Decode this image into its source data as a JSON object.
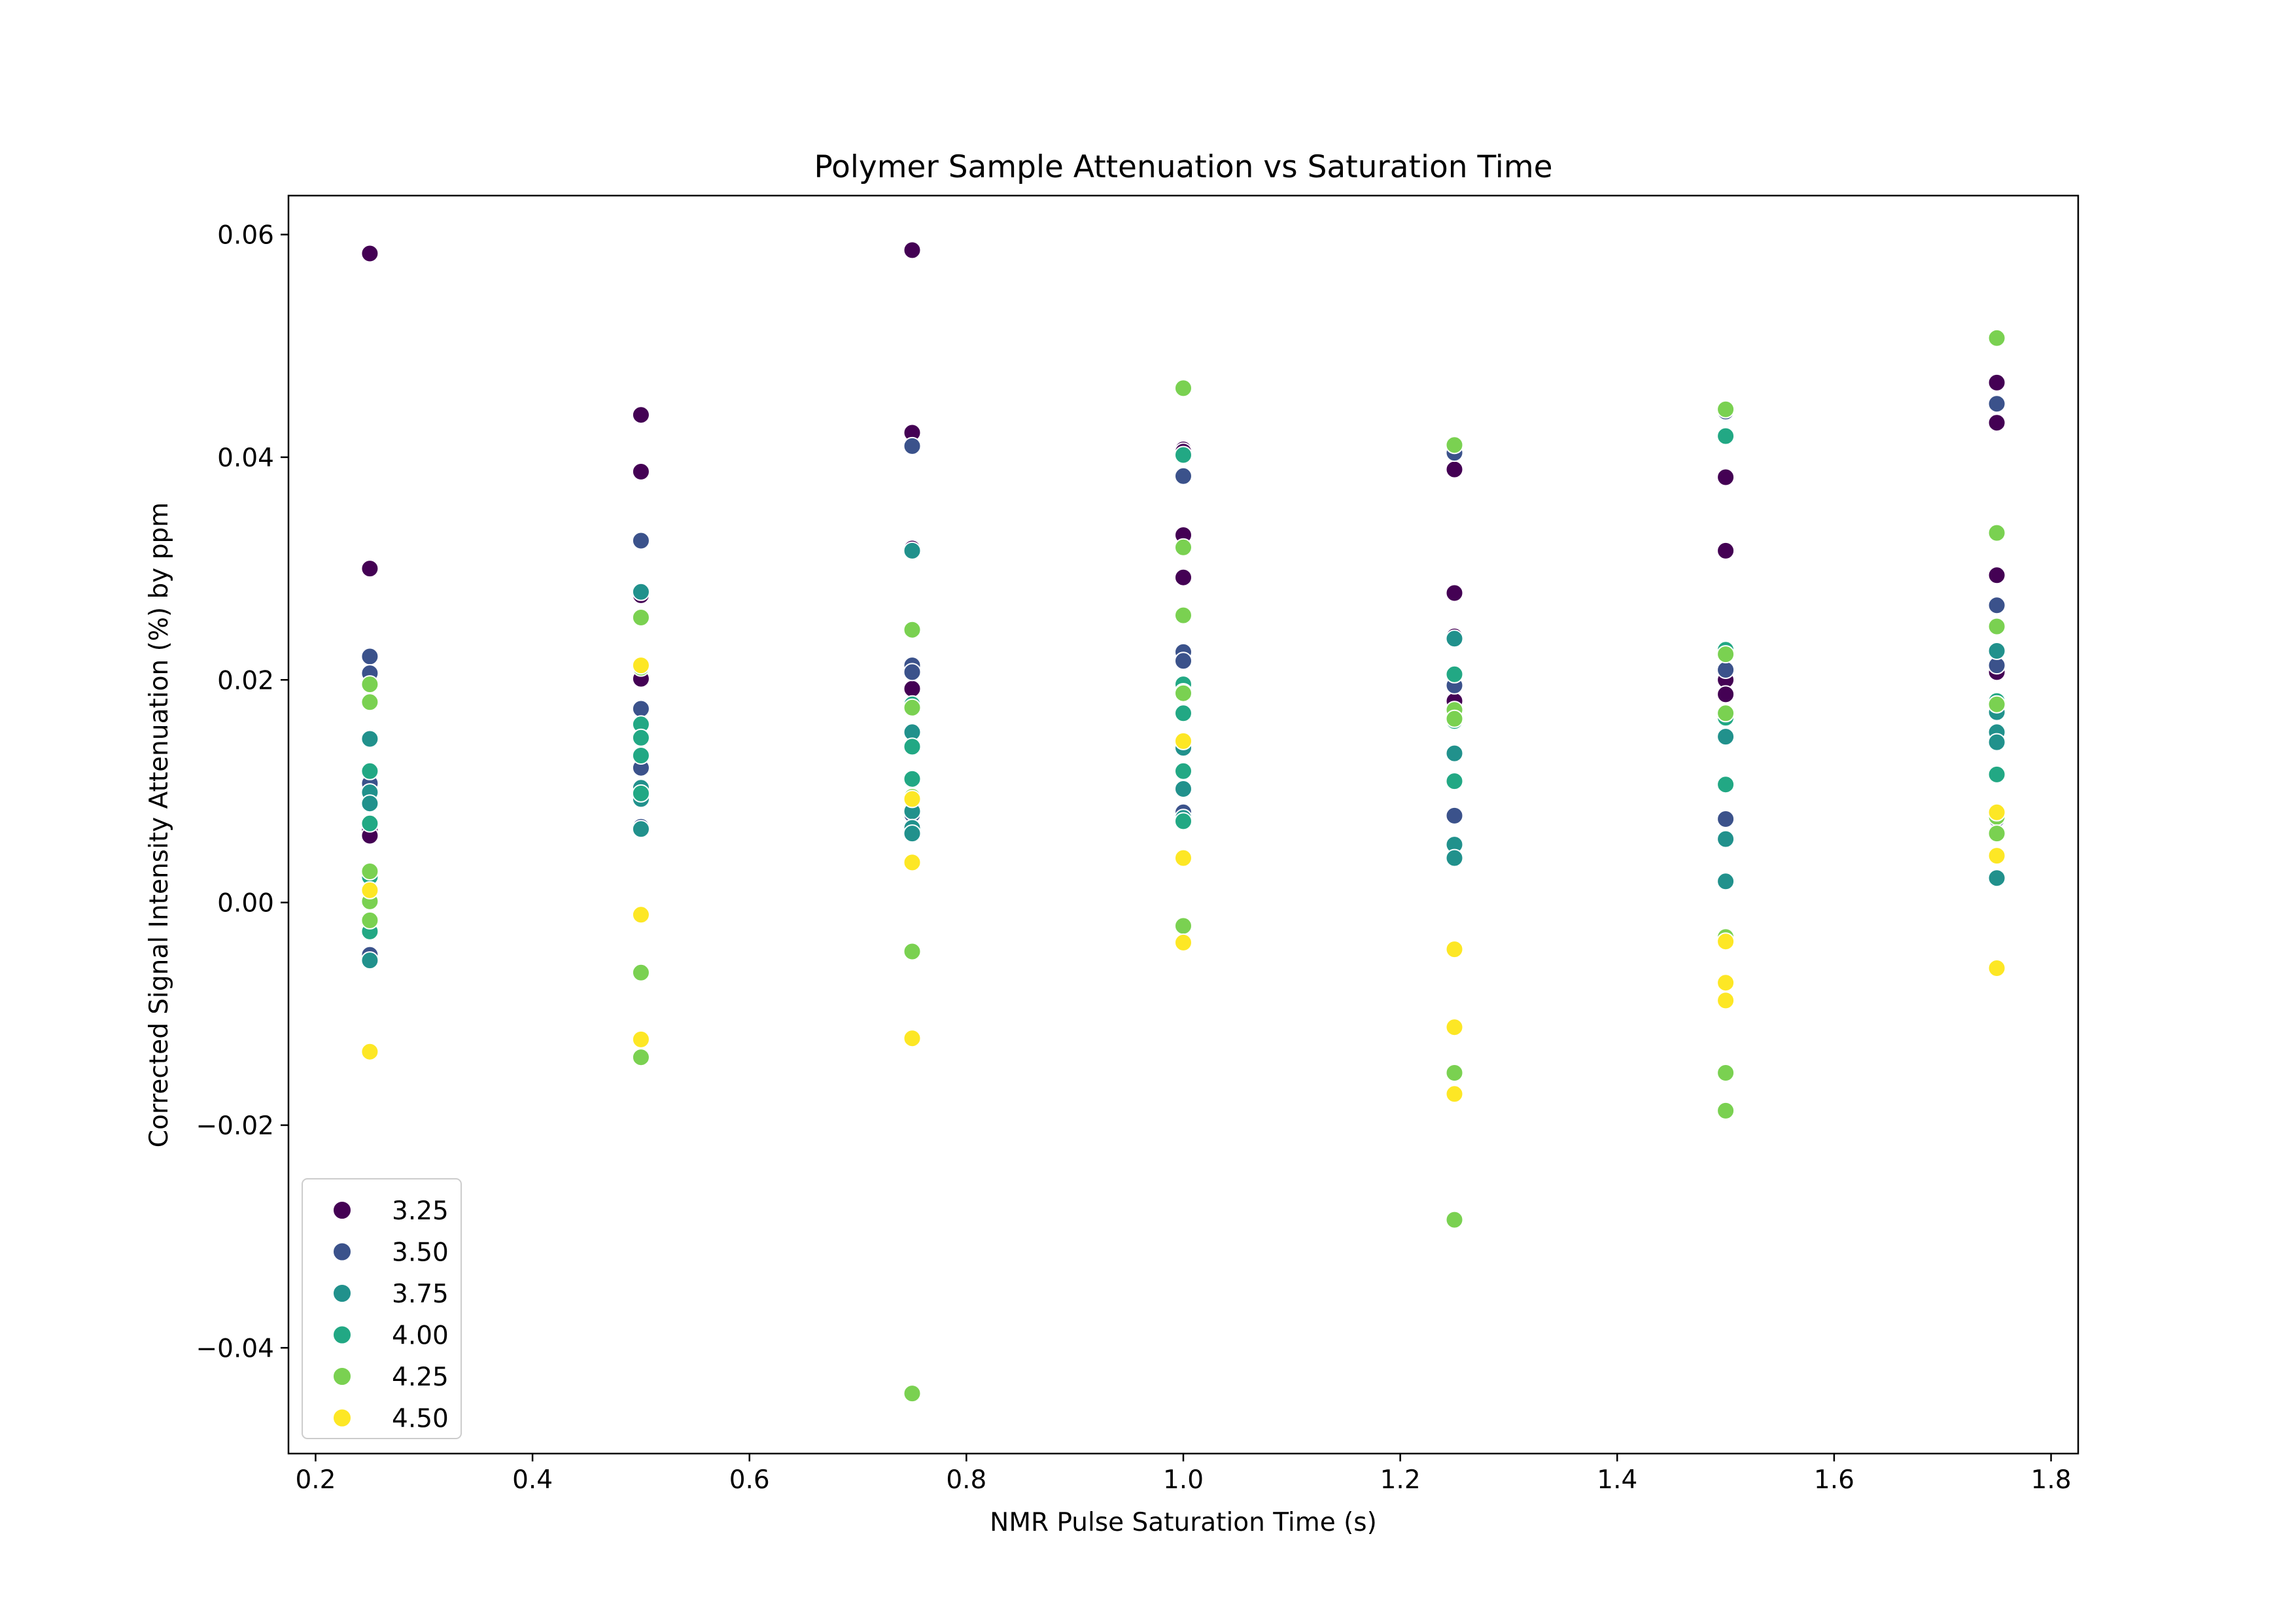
{
  "chart_data": {
    "type": "scatter",
    "title": "Polymer Sample Attenuation vs Saturation Time",
    "xlabel": "NMR Pulse Saturation Time (s)",
    "ylabel": "Corrected Signal Intensity Attenuation  (%) by ppm",
    "xlim": [
      0.175,
      1.825
    ],
    "ylim": [
      -0.0495,
      0.0635
    ],
    "x_ticks": [
      0.2,
      0.4,
      0.6,
      0.8,
      1.0,
      1.2,
      1.4,
      1.6,
      1.8
    ],
    "x_tick_labels": [
      "0.2",
      "0.4",
      "0.6",
      "0.8",
      "1.0",
      "1.2",
      "1.4",
      "1.6",
      "1.8"
    ],
    "y_ticks": [
      -0.04,
      -0.02,
      0.0,
      0.02,
      0.04,
      0.06
    ],
    "y_tick_labels": [
      "−0.04",
      "−0.02",
      "0.00",
      "0.02",
      "0.04",
      "0.06"
    ],
    "grid": false,
    "legend_position": "lower-left",
    "hue": "ppm",
    "series": [
      {
        "name": "3.25",
        "color": "#440154",
        "points": [
          [
            0.25,
            0.0583
          ],
          [
            0.25,
            0.03
          ],
          [
            0.25,
            0.0065
          ],
          [
            0.25,
            0.006
          ],
          [
            0.5,
            0.0438
          ],
          [
            0.5,
            0.0387
          ],
          [
            0.5,
            0.0276
          ],
          [
            0.5,
            0.0201
          ],
          [
            0.75,
            0.0586
          ],
          [
            0.75,
            0.0422
          ],
          [
            0.75,
            0.0318
          ],
          [
            0.75,
            0.0192
          ],
          [
            1.0,
            0.0407
          ],
          [
            1.0,
            0.0405
          ],
          [
            1.0,
            0.033
          ],
          [
            1.0,
            0.0292
          ],
          [
            1.25,
            0.0389
          ],
          [
            1.25,
            0.0278
          ],
          [
            1.25,
            0.0239
          ],
          [
            1.25,
            0.0181
          ],
          [
            1.5,
            0.0382
          ],
          [
            1.5,
            0.0316
          ],
          [
            1.5,
            0.02
          ],
          [
            1.5,
            0.0187
          ],
          [
            1.75,
            0.0467
          ],
          [
            1.75,
            0.0431
          ],
          [
            1.75,
            0.0294
          ],
          [
            1.75,
            0.0207
          ]
        ]
      },
      {
        "name": "3.50",
        "color": "#3b528b",
        "points": [
          [
            0.25,
            0.0221
          ],
          [
            0.25,
            0.0206
          ],
          [
            0.25,
            0.0107
          ],
          [
            0.25,
            -0.0047
          ],
          [
            0.5,
            0.0325
          ],
          [
            0.5,
            0.0174
          ],
          [
            0.5,
            0.0121
          ],
          [
            0.5,
            0.0068
          ],
          [
            0.75,
            0.041
          ],
          [
            0.75,
            0.0213
          ],
          [
            0.75,
            0.0207
          ],
          [
            0.75,
            0.0079
          ],
          [
            1.0,
            0.0383
          ],
          [
            1.0,
            0.0225
          ],
          [
            1.0,
            0.0217
          ],
          [
            1.0,
            0.0081
          ],
          [
            1.25,
            0.0404
          ],
          [
            1.25,
            0.0195
          ],
          [
            1.25,
            0.0078
          ],
          [
            1.5,
            0.0441
          ],
          [
            1.5,
            0.0209
          ],
          [
            1.5,
            0.0075
          ],
          [
            1.75,
            0.0448
          ],
          [
            1.75,
            0.0267
          ],
          [
            1.75,
            0.0213
          ],
          [
            1.75,
            0.0075
          ]
        ]
      },
      {
        "name": "3.75",
        "color": "#21918c",
        "points": [
          [
            0.25,
            0.0147
          ],
          [
            0.25,
            0.0099
          ],
          [
            0.25,
            0.0089
          ],
          [
            0.25,
            -0.0052
          ],
          [
            0.5,
            0.0279
          ],
          [
            0.5,
            0.0103
          ],
          [
            0.5,
            0.0093
          ],
          [
            0.5,
            0.0066
          ],
          [
            0.75,
            0.0316
          ],
          [
            0.75,
            0.0153
          ],
          [
            0.75,
            0.0082
          ],
          [
            0.75,
            0.0067
          ],
          [
            0.75,
            0.0062
          ],
          [
            1.0,
            0.0139
          ],
          [
            1.0,
            0.0102
          ],
          [
            1.0,
            0.0076
          ],
          [
            1.25,
            0.0237
          ],
          [
            1.25,
            0.0134
          ],
          [
            1.25,
            0.0052
          ],
          [
            1.25,
            0.004
          ],
          [
            1.5,
            0.0149
          ],
          [
            1.5,
            0.0057
          ],
          [
            1.5,
            0.0019
          ],
          [
            1.75,
            0.0226
          ],
          [
            1.75,
            0.0171
          ],
          [
            1.75,
            0.0153
          ],
          [
            1.75,
            0.0144
          ],
          [
            1.75,
            0.0022
          ]
        ]
      },
      {
        "name": "4.00",
        "color": "#22a884",
        "points": [
          [
            0.25,
            0.0118
          ],
          [
            0.25,
            0.0071
          ],
          [
            0.25,
            0.0023
          ],
          [
            0.25,
            -0.0026
          ],
          [
            0.5,
            0.016
          ],
          [
            0.5,
            0.0148
          ],
          [
            0.5,
            0.0132
          ],
          [
            0.5,
            0.0098
          ],
          [
            0.75,
            0.0178
          ],
          [
            0.75,
            0.014
          ],
          [
            0.75,
            0.0111
          ],
          [
            1.0,
            0.0402
          ],
          [
            1.0,
            0.0196
          ],
          [
            1.0,
            0.0189
          ],
          [
            1.0,
            0.017
          ],
          [
            1.0,
            0.0118
          ],
          [
            1.0,
            0.0073
          ],
          [
            1.25,
            0.0205
          ],
          [
            1.25,
            0.0163
          ],
          [
            1.25,
            0.0109
          ],
          [
            1.5,
            0.0419
          ],
          [
            1.5,
            0.0227
          ],
          [
            1.5,
            0.0166
          ],
          [
            1.5,
            0.0106
          ],
          [
            1.75,
            0.0181
          ],
          [
            1.75,
            0.0115
          ]
        ]
      },
      {
        "name": "4.25",
        "color": "#7ad151",
        "points": [
          [
            0.25,
            0.0196
          ],
          [
            0.25,
            0.018
          ],
          [
            0.25,
            0.0028
          ],
          [
            0.25,
            0.0001
          ],
          [
            0.25,
            -0.0016
          ],
          [
            0.5,
            0.0256
          ],
          [
            0.5,
            0.0211
          ],
          [
            0.5,
            -0.0063
          ],
          [
            0.5,
            -0.0139
          ],
          [
            0.75,
            0.0245
          ],
          [
            0.75,
            0.0175
          ],
          [
            0.75,
            0.0095
          ],
          [
            0.75,
            -0.0044
          ],
          [
            0.75,
            -0.0441
          ],
          [
            1.0,
            0.0462
          ],
          [
            1.0,
            0.0319
          ],
          [
            1.0,
            0.0258
          ],
          [
            1.0,
            0.0188
          ],
          [
            1.0,
            -0.0021
          ],
          [
            1.25,
            0.0411
          ],
          [
            1.25,
            0.0173
          ],
          [
            1.25,
            0.0165
          ],
          [
            1.25,
            -0.0153
          ],
          [
            1.25,
            -0.0285
          ],
          [
            1.5,
            0.0443
          ],
          [
            1.5,
            0.0223
          ],
          [
            1.5,
            0.017
          ],
          [
            1.5,
            -0.0031
          ],
          [
            1.5,
            -0.0153
          ],
          [
            1.5,
            -0.0187
          ],
          [
            1.75,
            0.0507
          ],
          [
            1.75,
            0.0332
          ],
          [
            1.75,
            0.0248
          ],
          [
            1.75,
            0.0178
          ],
          [
            1.75,
            0.0077
          ],
          [
            1.75,
            0.0062
          ]
        ]
      },
      {
        "name": "4.50",
        "color": "#fde725",
        "points": [
          [
            0.25,
            0.0011
          ],
          [
            0.25,
            -0.0134
          ],
          [
            0.5,
            0.0213
          ],
          [
            0.5,
            -0.0011
          ],
          [
            0.5,
            -0.0123
          ],
          [
            0.75,
            0.0093
          ],
          [
            0.75,
            0.0036
          ],
          [
            0.75,
            -0.0122
          ],
          [
            1.0,
            0.0145
          ],
          [
            1.0,
            0.004
          ],
          [
            1.0,
            -0.0036
          ],
          [
            1.25,
            -0.0042
          ],
          [
            1.25,
            -0.0112
          ],
          [
            1.25,
            -0.0172
          ],
          [
            1.5,
            -0.0035
          ],
          [
            1.5,
            -0.0072
          ],
          [
            1.5,
            -0.0088
          ],
          [
            1.75,
            0.0081
          ],
          [
            1.75,
            0.0042
          ],
          [
            1.75,
            -0.0059
          ]
        ]
      }
    ]
  }
}
